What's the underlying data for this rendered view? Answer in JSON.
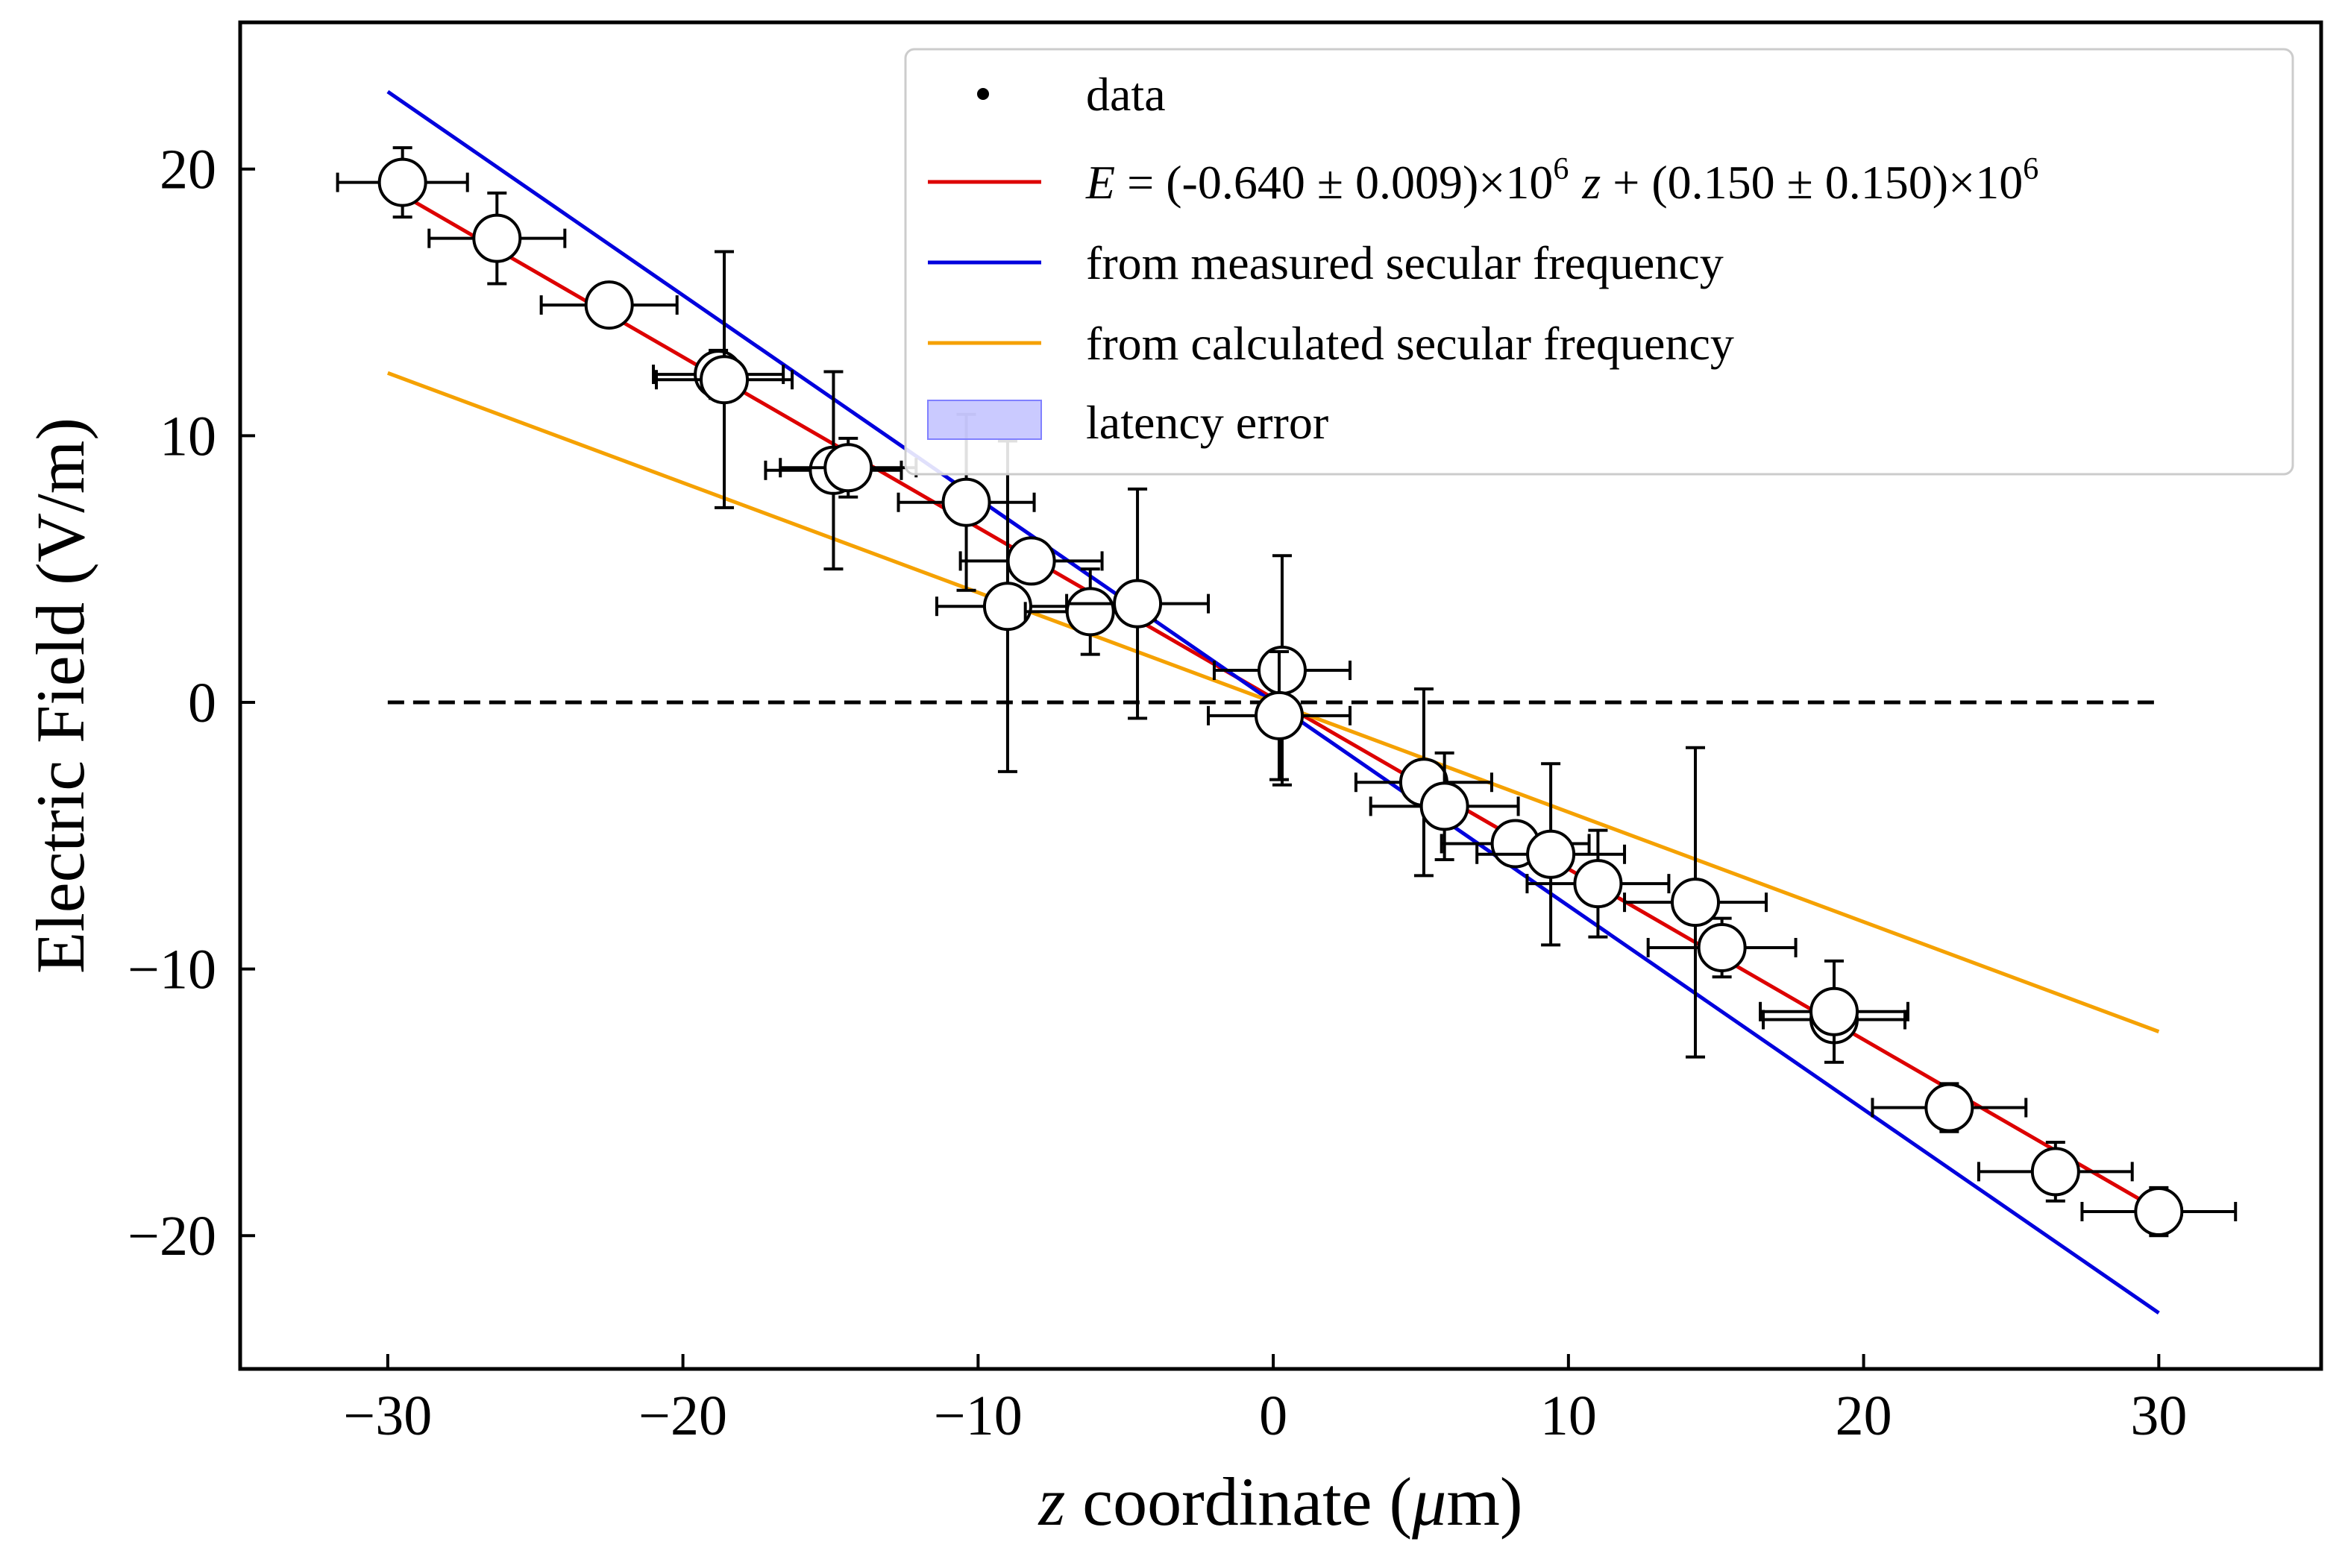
{
  "chart_data": {
    "type": "scatter",
    "xlabel_var": "z",
    "xlabel_rest": " coordinate (",
    "xlabel_mu": "μ",
    "xlabel_unit": "m)",
    "ylabel": "Electric Field (V/m)",
    "xlim": [
      -35,
      35.5
    ],
    "ylim": [
      -25,
      25.5
    ],
    "xticks": [
      -30,
      -20,
      -10,
      0,
      10,
      20,
      30
    ],
    "yticks": [
      -20,
      -10,
      0,
      10,
      20
    ],
    "xtick_labels": [
      "−30",
      "−20",
      "−10",
      "0",
      "10",
      "20",
      "30"
    ],
    "ytick_labels": [
      "−20",
      "−10",
      "0",
      "10",
      "20"
    ],
    "legend_position": "top-right",
    "legend": {
      "data": "data",
      "fit_var": "E",
      "fit_eq": " = (-0.640 ± 0.009)×10",
      "fit_exp1": "6",
      "fit_var2": "z",
      "fit_eq2": " + (0.150 ± 0.150)×10",
      "fit_exp2": "6",
      "measured": "from measured secular frequency",
      "calculated": "from calculated secular frequency",
      "latency": "latency error"
    },
    "colors": {
      "fit": "#dd0000",
      "measured": "#0000dd",
      "calculated": "#f5a100",
      "latency": "#b3b3ff",
      "data": "#000000"
    },
    "lines": [
      {
        "key": "fit",
        "x": [
          -30,
          30
        ],
        "y": [
          19.35,
          -19.05
        ]
      },
      {
        "key": "measured",
        "x": [
          -30,
          30
        ],
        "y": [
          22.9,
          -22.9
        ]
      },
      {
        "key": "calculated",
        "x": [
          -30,
          30
        ],
        "y": [
          12.35,
          -12.35
        ]
      }
    ],
    "zero_line": {
      "x": [
        -30,
        30
      ],
      "y": [
        0,
        0
      ]
    },
    "points": [
      {
        "x": -29.5,
        "y": 19.5,
        "xerr": 2.2,
        "yerr": 1.3
      },
      {
        "x": -26.3,
        "y": 17.4,
        "xerr": 2.3,
        "yerr": 1.7
      },
      {
        "x": -22.5,
        "y": 14.9,
        "xerr": 2.3,
        "yerr": 0
      },
      {
        "x": -18.8,
        "y": 12.3,
        "xerr": 2.2,
        "yerr": 0.9
      },
      {
        "x": -18.6,
        "y": 12.1,
        "xerr": 2.3,
        "yerr": 4.8
      },
      {
        "x": -14.9,
        "y": 8.7,
        "xerr": 2.3,
        "yerr": 3.7
      },
      {
        "x": -14.4,
        "y": 8.8,
        "xerr": 2.3,
        "yerr": 1.1
      },
      {
        "x": -10.4,
        "y": 7.5,
        "xerr": 2.3,
        "yerr": 3.3
      },
      {
        "x": -8.2,
        "y": 5.3,
        "xerr": 2.4,
        "yerr": 0
      },
      {
        "x": -9.0,
        "y": 3.6,
        "xerr": 2.4,
        "yerr": 6.2
      },
      {
        "x": -6.2,
        "y": 3.4,
        "xerr": 2.2,
        "yerr": 1.6
      },
      {
        "x": -4.6,
        "y": 3.7,
        "xerr": 2.4,
        "yerr": 4.3
      },
      {
        "x": 0.3,
        "y": 1.2,
        "xerr": 2.3,
        "yerr": 4.3
      },
      {
        "x": 0.2,
        "y": -0.5,
        "xerr": 2.4,
        "yerr": 2.4
      },
      {
        "x": 5.1,
        "y": -3.0,
        "xerr": 2.3,
        "yerr": 3.5
      },
      {
        "x": 5.8,
        "y": -3.9,
        "xerr": 2.5,
        "yerr": 2.0
      },
      {
        "x": 8.2,
        "y": -5.3,
        "xerr": 2.5,
        "yerr": 0
      },
      {
        "x": 9.4,
        "y": -5.7,
        "xerr": 2.5,
        "yerr": 3.4
      },
      {
        "x": 11.0,
        "y": -6.8,
        "xerr": 2.4,
        "yerr": 2.0
      },
      {
        "x": 14.3,
        "y": -7.5,
        "xerr": 2.4,
        "yerr": 5.8
      },
      {
        "x": 15.2,
        "y": -9.2,
        "xerr": 2.5,
        "yerr": 1.1
      },
      {
        "x": 19.0,
        "y": -11.9,
        "xerr": 2.4,
        "yerr": 0
      },
      {
        "x": 19.0,
        "y": -11.6,
        "xerr": 2.5,
        "yerr": 1.9
      },
      {
        "x": 22.9,
        "y": -15.2,
        "xerr": 2.6,
        "yerr": 0.9
      },
      {
        "x": 26.5,
        "y": -17.6,
        "xerr": 2.6,
        "yerr": 1.1
      },
      {
        "x": 30.0,
        "y": -19.1,
        "xerr": 2.6,
        "yerr": 0.9
      }
    ]
  }
}
